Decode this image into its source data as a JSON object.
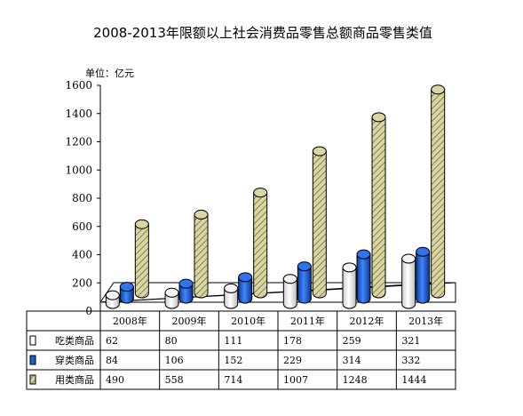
{
  "chart_data": {
    "type": "bar",
    "title": "2008-2013年限额以上社会消费品零售总额商品零售类值",
    "unit_label": "单位：亿元",
    "categories": [
      "2008年",
      "2009年",
      "2010年",
      "2011年",
      "2012年",
      "2013年"
    ],
    "series": [
      {
        "name": "吃类商品",
        "values": [
          62,
          80,
          111,
          178,
          259,
          321
        ],
        "color": "#f2f2f2"
      },
      {
        "name": "穿类商品",
        "values": [
          84,
          106,
          152,
          229,
          314,
          332
        ],
        "color": "#1f5fcf"
      },
      {
        "name": "用类商品",
        "values": [
          490,
          558,
          714,
          1007,
          1248,
          1444
        ],
        "color": "#d9d6a3"
      }
    ],
    "ylim": [
      0,
      1600
    ],
    "yticks": [
      "0",
      "200",
      "400",
      "600",
      "800",
      "1000",
      "1200",
      "1400",
      "1600"
    ],
    "grid": false,
    "legend": "data-table-below"
  }
}
